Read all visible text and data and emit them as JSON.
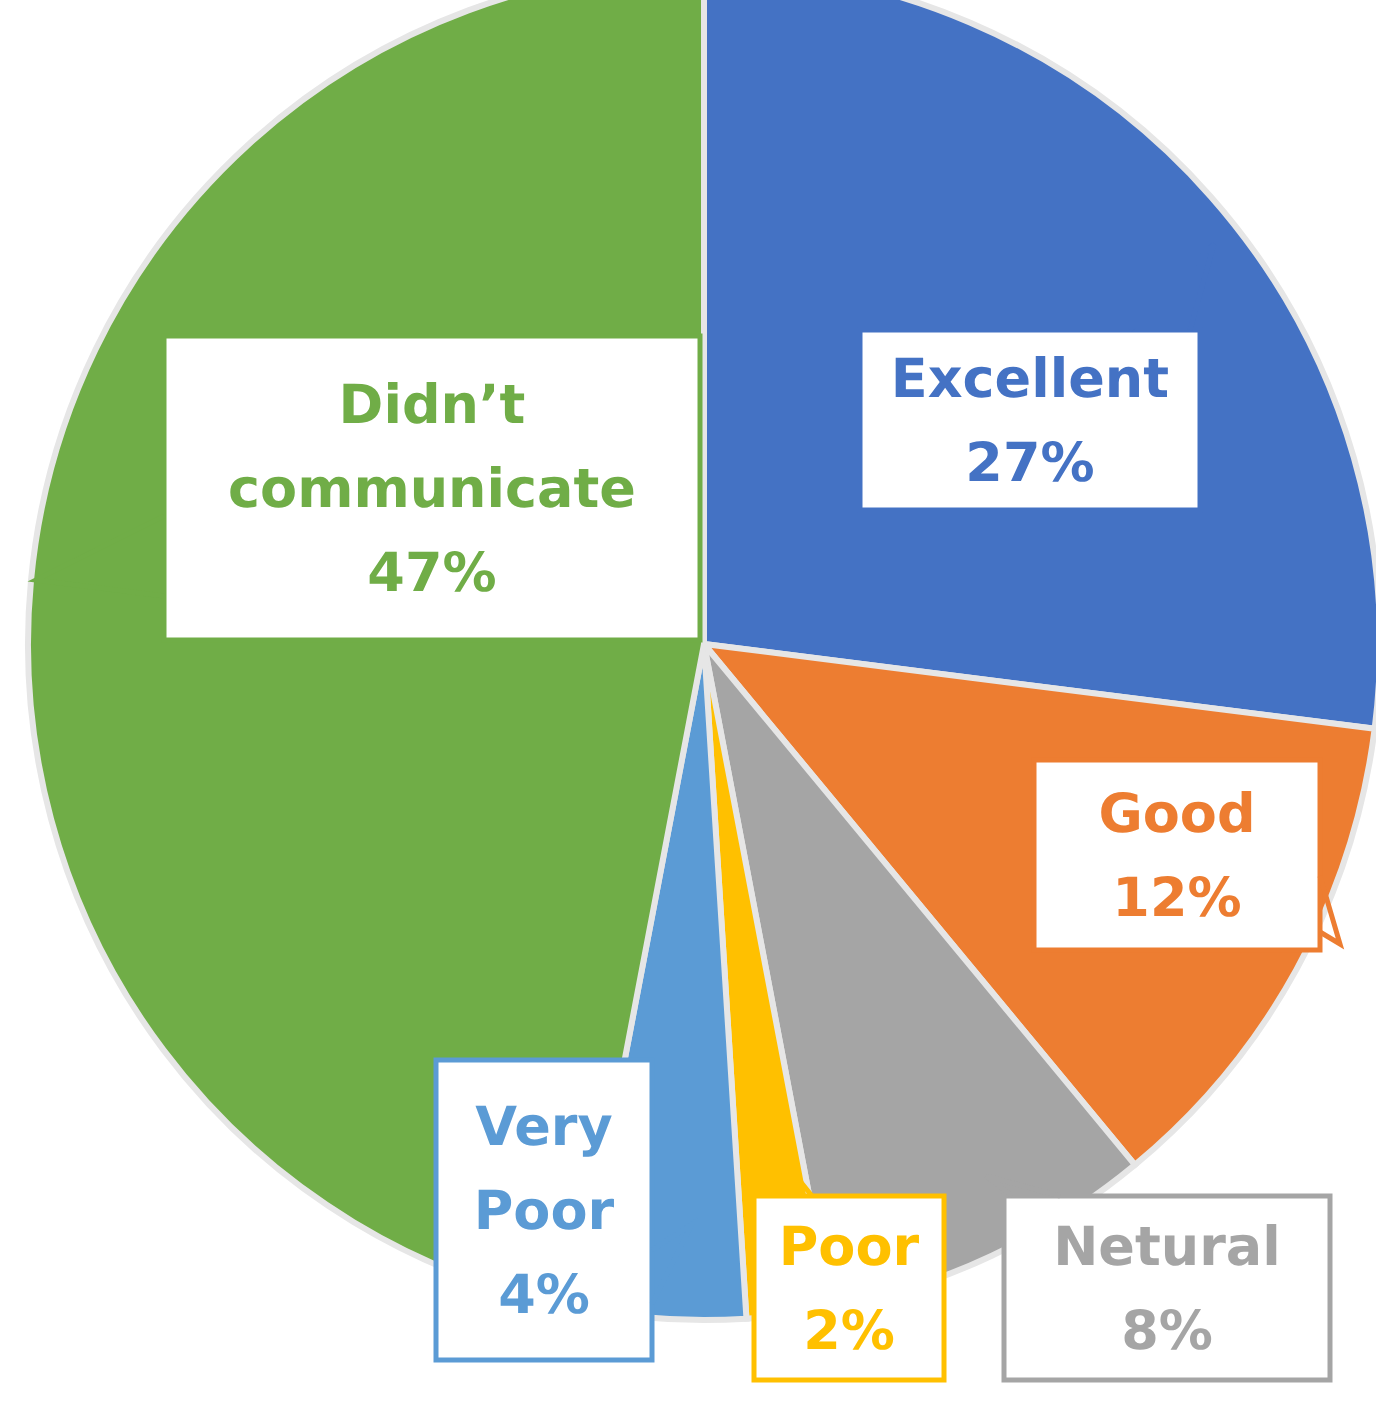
{
  "chart_data": {
    "type": "pie",
    "categories": [
      "Excellent",
      "Good",
      "Netural",
      "Poor",
      "Very Poor",
      "Didn’t communicate"
    ],
    "values": [
      27,
      12,
      8,
      2,
      4,
      47
    ],
    "value_labels": [
      "27%",
      "12%",
      "8%",
      "2%",
      "4%",
      "47%"
    ],
    "colors": [
      "#4472c4",
      "#ed7d31",
      "#a5a5a5",
      "#ffc000",
      "#5b9bd5",
      "#70ad47"
    ]
  }
}
